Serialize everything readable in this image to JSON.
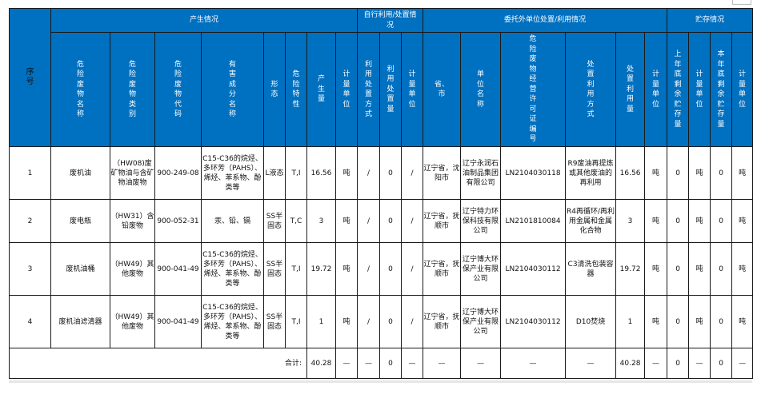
{
  "header": {
    "seq": "序号",
    "groups": [
      "产生情况",
      "自行利用/处置情况",
      "委托外单位处置/利用情况",
      "贮存情况"
    ],
    "columns": [
      "危险废物名称",
      "危险废物类别",
      "危险废物代码",
      "有害成分名称",
      "形态",
      "危险特性",
      "产生量",
      "计量单位",
      "利用处置方式",
      "利用处置量",
      "计量单位",
      "省、市",
      "单位名称",
      "危险废物经营许可证编号",
      "处置利用方式",
      "处置利用量",
      "计量单位",
      "上年底剩余贮存量",
      "计量单位",
      "本年底剩余贮存量",
      "计量单位"
    ]
  },
  "rows": [
    [
      "1",
      "废机油",
      "（HW08)废矿物油与含矿物油废物",
      "900-249-08",
      "C15-C36的烷烃、多环芳（PAHS）、烯烃、苯系物、酚类等",
      "L液态",
      "T,I",
      "16.56",
      "吨",
      "/",
      "0",
      "/",
      "辽宁省，沈阳市",
      "辽宁永润石油制品集团有限公司",
      "LN2104030118",
      "R9废油再提炼或其他废油的再利用",
      "16.56",
      "吨",
      "0",
      "吨",
      "0",
      "吨"
    ],
    [
      "2",
      "废电瓶",
      "（HW31）含铅废物",
      "900-052-31",
      "汞、铅、镉",
      "SS半固态",
      "T,C",
      "3",
      "吨",
      "/",
      "0",
      "/",
      "辽宁省，抚顺市",
      "辽宁特力环保科技有限公司",
      "LN2101810084",
      "R4再循环/再利用金属和金属化合物",
      "3",
      "吨",
      "0",
      "吨",
      "0",
      "吨"
    ],
    [
      "3",
      "废机油桶",
      "（HW49）其他废物",
      "900-041-49",
      "C15-C36的烷烃、多环芳（PAHS）、烯烃、苯系物、酚类等",
      "SS半固态",
      "T,I",
      "19.72",
      "吨",
      "/",
      "0",
      "/",
      "辽宁省，抚顺市",
      "辽宁博大环保产业有限公司",
      "LN2104030112",
      "C3清洗包装容器",
      "19.72",
      "吨",
      "0",
      "吨",
      "0",
      "吨"
    ],
    [
      "4",
      "废机油滤清器",
      "（HW49）其他废物",
      "900-041-49",
      "C15-C36的烷烃、多环芳（PAHS）、烯烃、苯系物、酚类等",
      "SS半固态",
      "T,I",
      "1",
      "吨",
      "/",
      "0",
      "/",
      "辽宁省，抚顺市",
      "辽宁博大环保产业有限公司",
      "LN2104030112",
      "D10焚烧",
      "1",
      "吨",
      "0",
      "吨",
      "0",
      "吨"
    ]
  ],
  "total": {
    "label": "合计:",
    "values": [
      "40.28",
      "—",
      "—",
      "0",
      "—",
      "—",
      "—",
      "—",
      "—",
      "40.28",
      "—",
      "0",
      "—",
      "0",
      "—"
    ]
  },
  "colors": {
    "header_bg": "#0070c0",
    "header_text": "#ffffff"
  }
}
